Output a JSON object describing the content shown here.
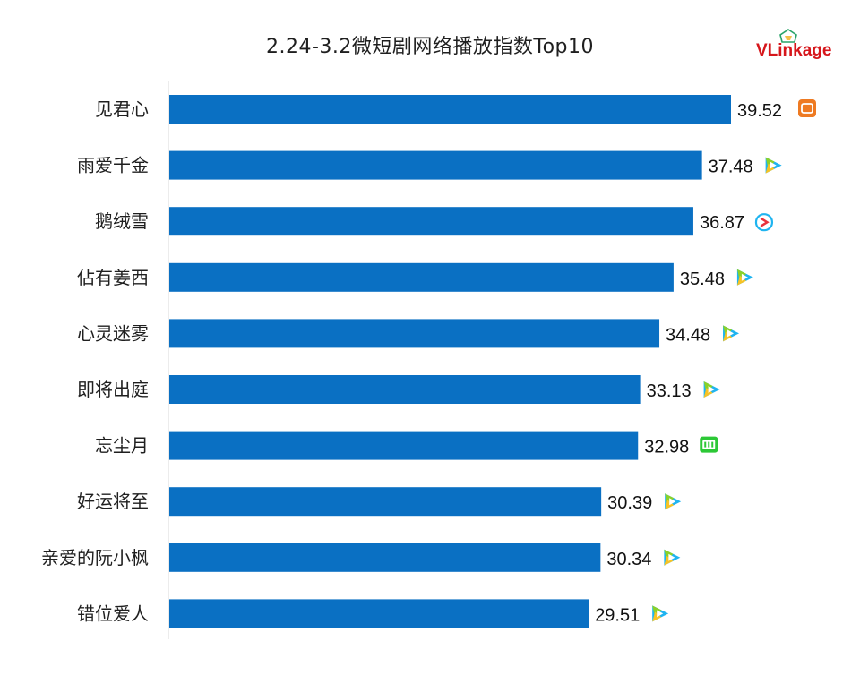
{
  "header": {
    "title": "2.24-3.2微短剧网络播放指数Top10",
    "logo_text": "VLinkage",
    "logo_text_main": "VLink",
    "logo_text_tail": "age",
    "logo_color": "#d6161b"
  },
  "colors": {
    "bar": "#0a70c3",
    "axis": "#d9d9d9",
    "label": "#1f1f1f",
    "platform_mango": "#ee7a22",
    "platform_tencent_blue": "#1fb4f0",
    "platform_tencent_green": "#8bd12a",
    "platform_tencent_yellow": "#f7c325",
    "platform_youku_red": "#e8323c",
    "platform_iqiyi": "#2cc836"
  },
  "chart_data": {
    "type": "bar",
    "orientation": "horizontal",
    "title": "2.24-3.2微短剧网络播放指数Top10",
    "categories": [
      "见君心",
      "雨爱千金",
      "鹅绒雪",
      "佔有姜西",
      "心灵迷雾",
      "即将出庭",
      "忘尘月",
      "好运将至",
      "亲爱的阮小枫",
      "错位爱人"
    ],
    "values": [
      39.52,
      37.48,
      36.87,
      35.48,
      34.48,
      33.13,
      32.98,
      30.39,
      30.34,
      29.51
    ],
    "value_labels": [
      "39.52",
      "37.48",
      "36.87",
      "35.48",
      "34.48",
      "33.13",
      "32.98",
      "30.39",
      "30.34",
      "29.51"
    ],
    "platform_icons": [
      "mango-tv-icon",
      "tencent-video-icon",
      "youku-icon",
      "tencent-video-icon",
      "tencent-video-icon",
      "tencent-video-icon",
      "iqiyi-icon",
      "tencent-video-icon",
      "tencent-video-icon",
      "tencent-video-icon"
    ],
    "xlim": [
      0,
      40
    ],
    "grid": false,
    "legend": "none"
  }
}
